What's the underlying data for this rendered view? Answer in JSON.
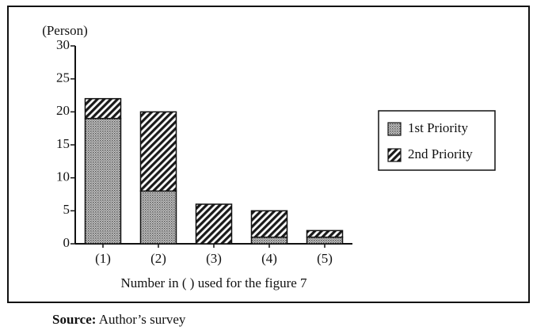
{
  "chart_data": {
    "type": "stacked_bar",
    "y_label": "(Person)",
    "x_label": "Number in (   ) used for the figure 7",
    "categories": [
      "(1)",
      "(2)",
      "(3)",
      "(4)",
      "(5)"
    ],
    "series": [
      {
        "name": "1st Priority",
        "color": "#cfcfcf",
        "pattern": "dots",
        "values": [
          19,
          8,
          0,
          1,
          1
        ]
      },
      {
        "name": "2nd Priority",
        "color": "#1a1a1a",
        "pattern": "hatch",
        "values": [
          3,
          12,
          6,
          4,
          1
        ]
      }
    ],
    "ylim": [
      0,
      30
    ],
    "yticks": [
      0,
      5,
      10,
      15,
      20,
      25,
      30
    ],
    "legend": "right"
  },
  "source": {
    "label": "Source:",
    "text": "Author’s survey"
  }
}
